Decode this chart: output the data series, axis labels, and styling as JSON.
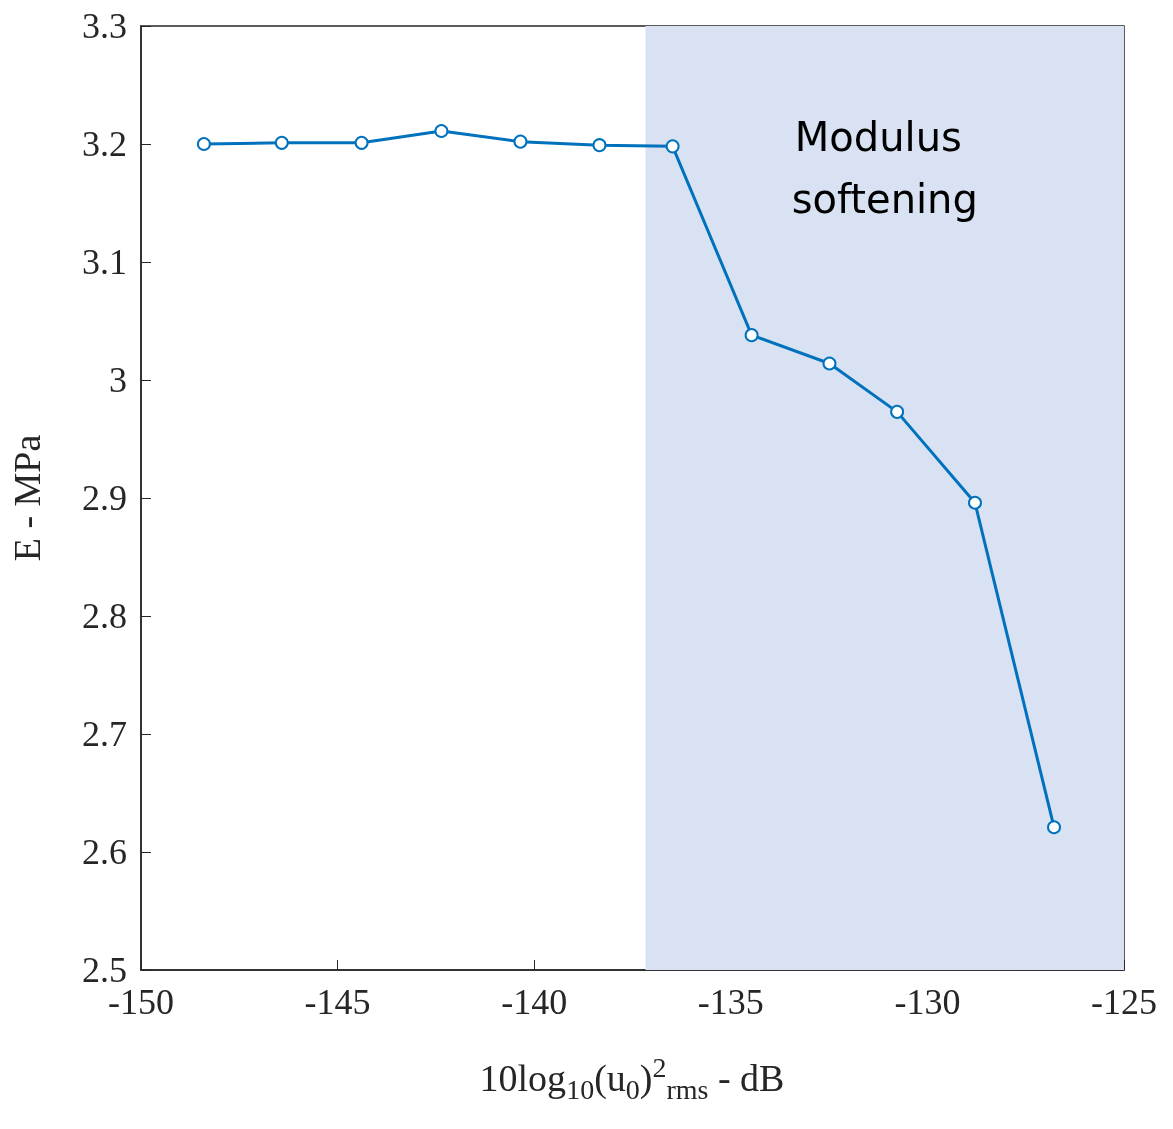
{
  "chart_data": {
    "type": "line",
    "xlabel": "10log$_{10}$(u$_{0}$)$^{2}$$_{rms}$ - dB",
    "ylabel": "E - MPa",
    "x": [
      -148.4,
      -146.42,
      -144.39,
      -142.36,
      -140.35,
      -138.34,
      -136.48,
      -134.47,
      -132.49,
      -130.77,
      -128.79,
      -126.78
    ],
    "series": [
      {
        "color": "#0072bd",
        "values": [
          3.2,
          3.201,
          3.201,
          3.211,
          3.202,
          3.199,
          3.198,
          3.038,
          3.014,
          2.973,
          2.896,
          2.621
        ]
      }
    ],
    "xlim": [
      -150,
      -125
    ],
    "xticks": [
      -150,
      -145,
      -140,
      -135,
      -130,
      -125
    ],
    "ylim": [
      2.5,
      3.3
    ],
    "yticks": [
      2.5,
      2.6,
      2.7,
      2.8,
      2.9,
      3,
      3.1,
      3.2,
      3.3
    ],
    "bands": [
      {
        "axis": "x",
        "from": -137.17,
        "to": -125,
        "label": "Modulus softening",
        "color": "#d9e2f3"
      }
    ],
    "marker": "circle",
    "line_style": "solid",
    "grid": false
  }
}
